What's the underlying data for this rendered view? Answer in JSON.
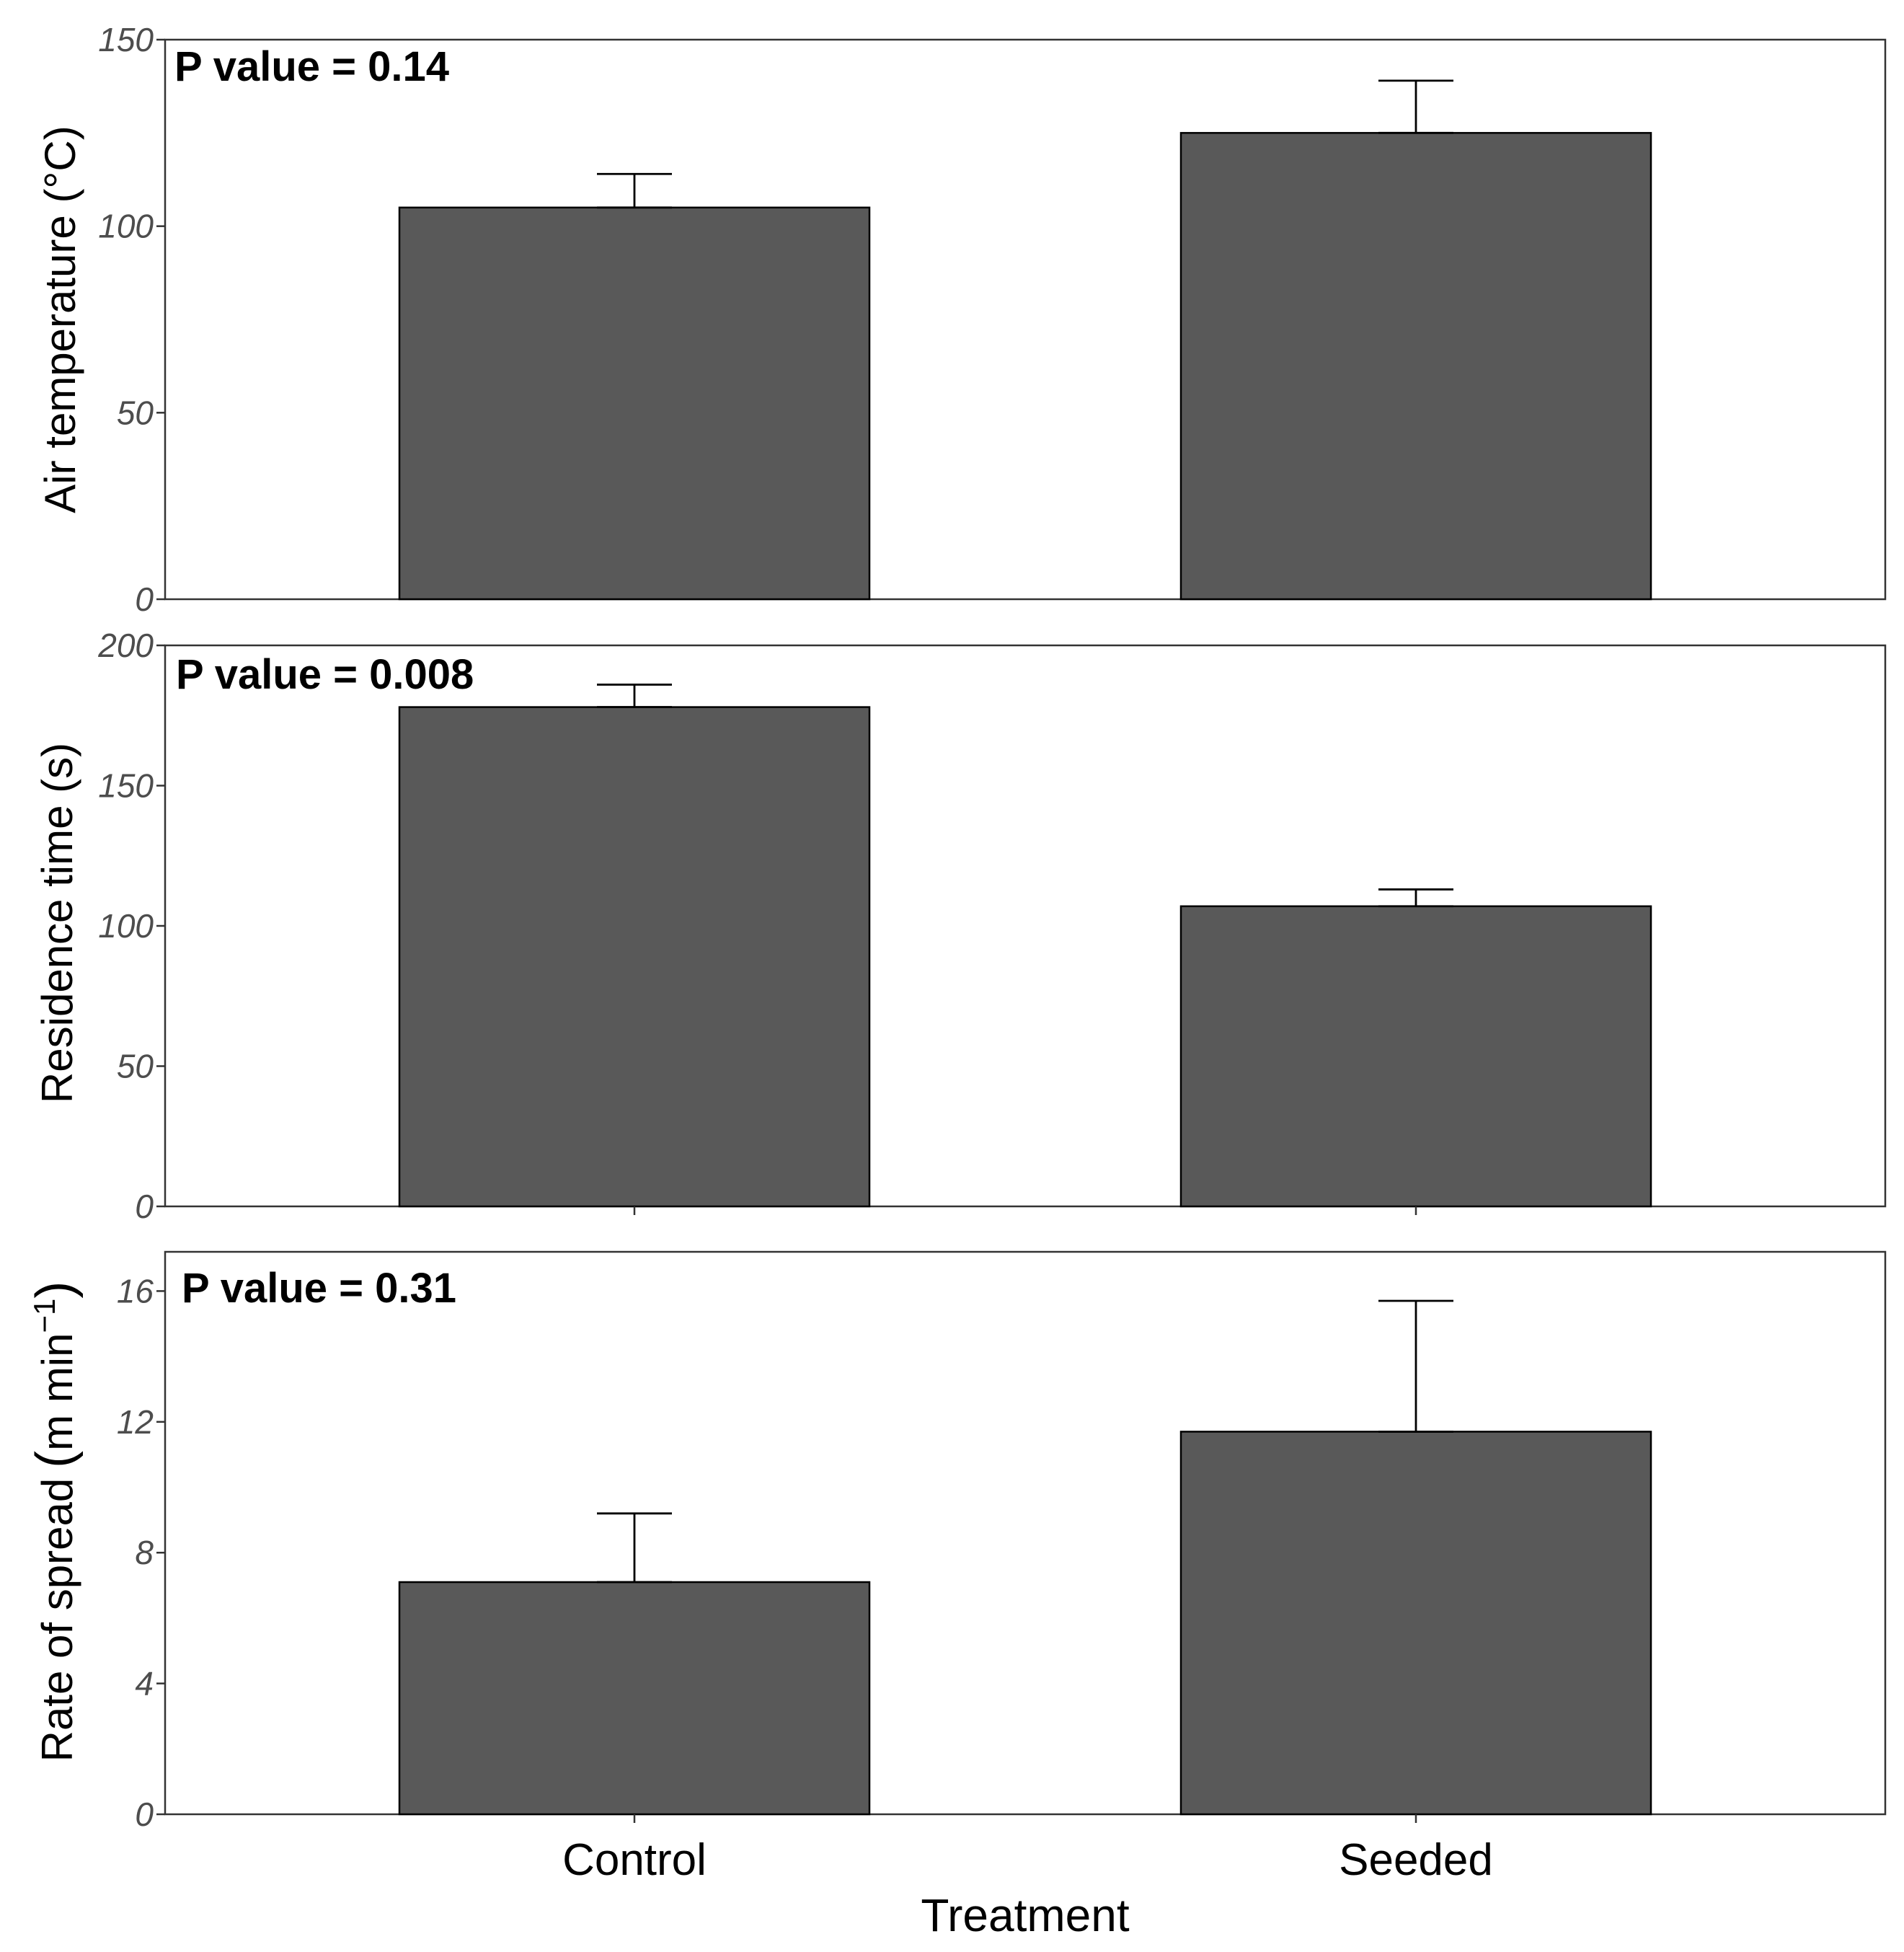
{
  "chart_data": [
    {
      "type": "bar",
      "categories": [
        "Control",
        "Seeded"
      ],
      "values": [
        105,
        125
      ],
      "error_upper": [
        114,
        139
      ],
      "ylabel": "Air temperature (°C)",
      "ylim": [
        0,
        150
      ],
      "yticks": [
        0,
        50,
        100,
        150
      ],
      "annotation": "P value = 0.14"
    },
    {
      "type": "bar",
      "categories": [
        "Control",
        "Seeded"
      ],
      "values": [
        178,
        107
      ],
      "error_upper": [
        186,
        113
      ],
      "ylabel": "Residence time (s)",
      "ylim": [
        0,
        200
      ],
      "yticks": [
        0,
        50,
        100,
        150,
        200
      ],
      "annotation": "P value = 0.008"
    },
    {
      "type": "bar",
      "categories": [
        "Control",
        "Seeded"
      ],
      "values": [
        7.1,
        11.7
      ],
      "error_upper": [
        9.2,
        15.7
      ],
      "ylabel": "Rate of spread",
      "ylabel_unit_base": "m min",
      "ylabel_unit_exp": "−1",
      "ylim": [
        0,
        17.2
      ],
      "yticks": [
        0,
        4,
        8,
        12,
        16
      ],
      "annotation": "P value = 0.31"
    }
  ],
  "xaxis": {
    "title": "Treatment",
    "categories": [
      "Control",
      "Seeded"
    ]
  }
}
